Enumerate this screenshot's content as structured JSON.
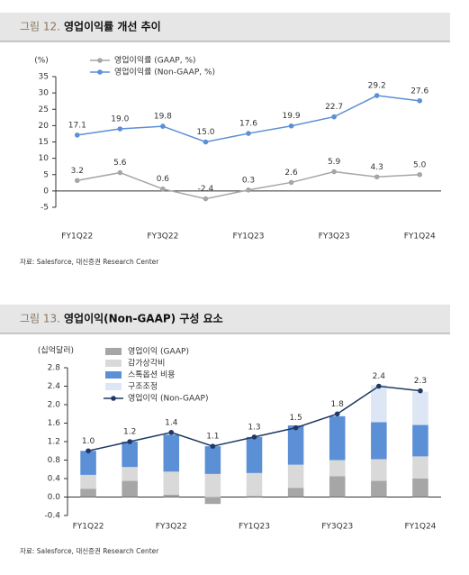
{
  "chart_data": [
    {
      "type": "line",
      "figure_label": "그림 12.",
      "title": "영업이익률 개선 추이",
      "ylabel": "(%)",
      "categories": [
        "FY1Q22",
        null,
        "FY3Q22",
        null,
        "FY1Q23",
        null,
        "FY3Q23",
        null,
        "FY1Q24"
      ],
      "series": [
        {
          "name": "영업이익률 (GAAP, %)",
          "color": "#a6a6a6",
          "values": [
            3.2,
            5.6,
            0.6,
            -2.4,
            0.3,
            2.6,
            5.9,
            4.3,
            5.0
          ],
          "value_labels": [
            "3.2",
            "5.6",
            "0.6",
            "-2.4",
            "0.3",
            "2.6",
            "5.9",
            "4.3",
            "5.0"
          ]
        },
        {
          "name": "영업이익률 (Non-GAAP, %)",
          "color": "#5b8fd6",
          "values": [
            17.1,
            19.0,
            19.8,
            15.0,
            17.6,
            19.9,
            22.7,
            29.2,
            27.6
          ],
          "value_labels": [
            "17.1",
            "19.0",
            "19.8",
            "15.0",
            "17.6",
            "19.9",
            "22.7",
            "29.2",
            "27.6"
          ]
        }
      ],
      "ylim": [
        -5,
        35
      ],
      "yticks": [
        -5,
        0,
        5,
        10,
        15,
        20,
        25,
        30,
        35
      ],
      "source": "자료: Salesforce, 대신증권 Research Center"
    },
    {
      "type": "bar",
      "stacked": true,
      "figure_label": "그림 13.",
      "title": "영업이익(Non-GAAP) 구성 요소",
      "ylabel": "(십억달러)",
      "categories": [
        "FY1Q22",
        null,
        "FY3Q22",
        null,
        "FY1Q23",
        null,
        "FY3Q23",
        null,
        "FY1Q24"
      ],
      "series": [
        {
          "name": "영업이익 (GAAP)",
          "color": "#a6a6a6",
          "values": [
            0.18,
            0.35,
            0.05,
            -0.15,
            0.02,
            0.2,
            0.45,
            0.35,
            0.4
          ]
        },
        {
          "name": "감가상각비",
          "color": "#d9d9d9",
          "values": [
            0.3,
            0.3,
            0.5,
            0.5,
            0.5,
            0.5,
            0.35,
            0.47,
            0.48
          ]
        },
        {
          "name": "스톡옵션 비용",
          "color": "#5b8fd6",
          "values": [
            0.52,
            0.55,
            0.8,
            0.6,
            0.78,
            0.85,
            0.95,
            0.8,
            0.68
          ]
        },
        {
          "name": "구조조정",
          "color": "#dce6f4",
          "values": [
            0,
            0,
            0,
            0,
            0,
            0,
            0,
            0.8,
            0.72
          ]
        },
        {
          "name": "영업이익 (Non-GAAP)",
          "color": "#1f3864",
          "type": "line",
          "values": [
            1.0,
            1.2,
            1.4,
            1.1,
            1.3,
            1.5,
            1.8,
            2.4,
            2.3
          ],
          "value_labels": [
            "1.0",
            "1.2",
            "1.4",
            "1.1",
            "1.3",
            "1.5",
            "1.8",
            "2.4",
            "2.3"
          ]
        }
      ],
      "ylim": [
        -0.4,
        2.8
      ],
      "yticks": [
        -0.4,
        {
          "value": 0,
          "label": "0.0"
        },
        0.4,
        0.8,
        1.2,
        1.6,
        {
          "value": 2,
          "label": "2.0"
        },
        2.4,
        2.8
      ],
      "source": "자료: Salesforce, 대신증권 Research Center"
    }
  ]
}
